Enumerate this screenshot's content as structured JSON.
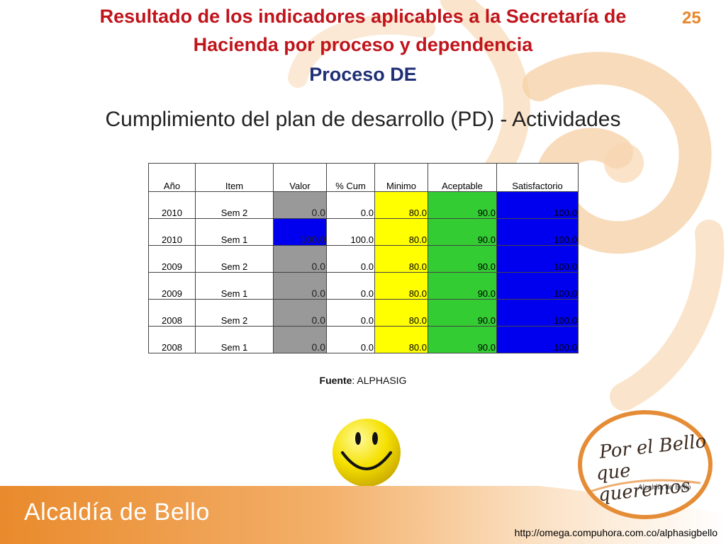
{
  "header": {
    "title_line1": "Resultado de los indicadores aplicables a la Secretaría de",
    "title_line2": "Hacienda por proceso y dependencia",
    "process": "Proceso DE",
    "page_number": "25"
  },
  "subtitle": "Cumplimiento del plan de desarrollo (PD) - Actividades",
  "table": {
    "columns": [
      "Año",
      "Item",
      "Valor",
      "% Cum",
      "Minimo",
      "Aceptable",
      "Satisfactorio"
    ],
    "rows": [
      {
        "year": "2010",
        "item": "Sem 2",
        "valor": "0.0",
        "cum": "0.0",
        "min": "80.0",
        "acept": "90.0",
        "sat": "100.0",
        "valor_color": "#999999"
      },
      {
        "year": "2010",
        "item": "Sem 1",
        "valor": "100.0",
        "cum": "100.0",
        "min": "80.0",
        "acept": "90.0",
        "sat": "100.0",
        "valor_color": "#0000ee"
      },
      {
        "year": "2009",
        "item": "Sem 2",
        "valor": "0.0",
        "cum": "0.0",
        "min": "80.0",
        "acept": "90.0",
        "sat": "100.0",
        "valor_color": "#999999"
      },
      {
        "year": "2009",
        "item": "Sem 1",
        "valor": "0.0",
        "cum": "0.0",
        "min": "80.0",
        "acept": "90.0",
        "sat": "100.0",
        "valor_color": "#999999"
      },
      {
        "year": "2008",
        "item": "Sem 2",
        "valor": "0.0",
        "cum": "0.0",
        "min": "80.0",
        "acept": "90.0",
        "sat": "100.0",
        "valor_color": "#999999"
      },
      {
        "year": "2008",
        "item": "Sem 1",
        "valor": "0.0",
        "cum": "0.0",
        "min": "80.0",
        "acept": "90.0",
        "sat": "100.0",
        "valor_color": "#999999"
      }
    ],
    "colors": {
      "minimo": "#ffff00",
      "aceptable": "#33cc33",
      "satisfactorio": "#0000ee"
    }
  },
  "source": {
    "label": "Fuente",
    "value": ": ALPHASIG"
  },
  "badge": {
    "line1": "Por el Bello",
    "line2": "que queremos",
    "line3": "Alcaldía de Bello"
  },
  "footer": {
    "brand": "Alcaldía de Bello",
    "url": "http://omega.compuhora.com.co/alphasigbello"
  },
  "theme": {
    "title_red": "#c0141b",
    "title_blue": "#1f2f75",
    "orange": "#f0a04b"
  },
  "icons": [
    "smiley-face-icon",
    "swirl-decoration"
  ]
}
